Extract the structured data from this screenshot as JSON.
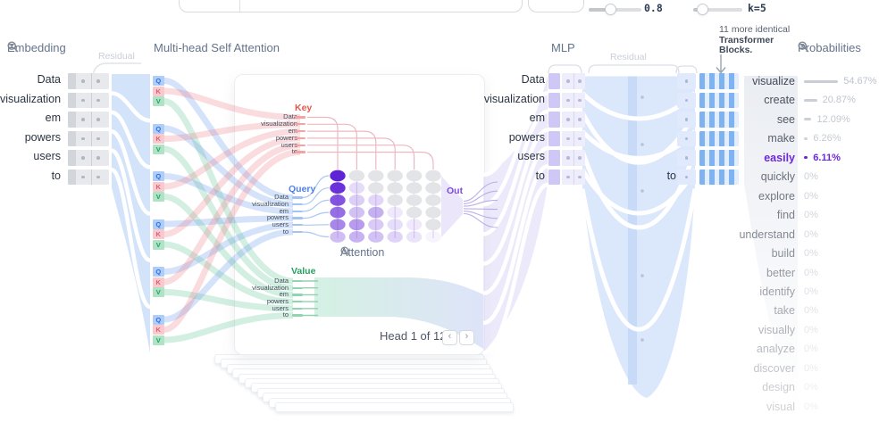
{
  "topbar": {
    "temperature_value": "0.8",
    "topk_value": "k=5"
  },
  "headers": {
    "embedding": "Embedding",
    "multi_head": "Multi-head Self Attention",
    "mlp": "MLP",
    "probabilities": "Probabilities",
    "residual_left": "Residual",
    "residual_right": "Residual",
    "blocks_note": [
      "11 more identical",
      "Transformer",
      "Blocks."
    ]
  },
  "tokens": [
    "Data",
    "visualization",
    "em",
    "powers",
    "users",
    "to"
  ],
  "qkv": {
    "q": "Q",
    "k": "K",
    "v": "V"
  },
  "attention_head": {
    "key_label": "Key",
    "query_label": "Query",
    "value_label": "Value",
    "out_label": "Out",
    "attention_label": "Attention",
    "head_nav": "Head 1 of 12",
    "prev": "‹",
    "next": "›",
    "matrix": [
      [
        1,
        0,
        0,
        0,
        0,
        0
      ],
      [
        0.93,
        0.16,
        0,
        0,
        0,
        0
      ],
      [
        0.78,
        0.22,
        0.18,
        0,
        0,
        0
      ],
      [
        0.66,
        0.28,
        0.36,
        0.1,
        0,
        0
      ],
      [
        0.55,
        0.45,
        0.24,
        0.15,
        0.1,
        0
      ],
      [
        0.3,
        0.35,
        0.28,
        0.2,
        0.13,
        0.05
      ]
    ]
  },
  "mlp_section": {
    "post_residual_token": "to"
  },
  "probabilities": {
    "rows": [
      {
        "word": "visualize",
        "pct": "54.67%",
        "value": 54.67
      },
      {
        "word": "create",
        "pct": "20.87%",
        "value": 20.87
      },
      {
        "word": "see",
        "pct": "12.09%",
        "value": 12.09
      },
      {
        "word": "make",
        "pct": "6.26%",
        "value": 6.26
      },
      {
        "word": "easily",
        "pct": "6.11%",
        "value": 6.11,
        "selected": true
      },
      {
        "word": "quickly",
        "pct": "0%",
        "value": 0
      },
      {
        "word": "explore",
        "pct": "0%",
        "value": 0
      },
      {
        "word": "find",
        "pct": "0%",
        "value": 0
      },
      {
        "word": "understand",
        "pct": "0%",
        "value": 0
      },
      {
        "word": "build",
        "pct": "0%",
        "value": 0
      },
      {
        "word": "better",
        "pct": "0%",
        "value": 0
      },
      {
        "word": "identify",
        "pct": "0%",
        "value": 0
      },
      {
        "word": "take",
        "pct": "0%",
        "value": 0
      },
      {
        "word": "visually",
        "pct": "0%",
        "value": 0
      },
      {
        "word": "analyze",
        "pct": "0%",
        "value": 0
      },
      {
        "word": "discover",
        "pct": "0%",
        "value": 0
      },
      {
        "word": "design",
        "pct": "0%",
        "value": 0
      },
      {
        "word": "visual",
        "pct": "0%",
        "value": 0
      }
    ]
  }
}
